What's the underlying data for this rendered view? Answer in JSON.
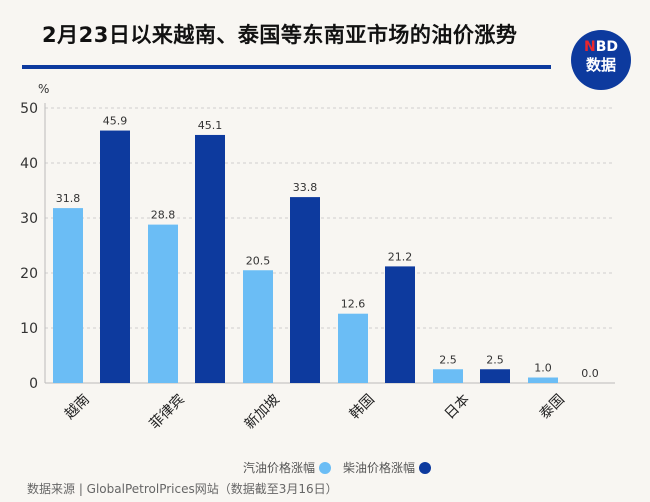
{
  "title": "2月23日以来越南、泰国等东南亚市场的油价涨势",
  "logo": {
    "brand": "NBD",
    "sub": "数据"
  },
  "source": "数据来源 | GlobalPetrolPrices网站（数据截至3月16日）",
  "colors": {
    "gasoline": "#6bbdf5",
    "diesel": "#0d3a9e",
    "accent": "#0d3a9e"
  },
  "chart_data": {
    "type": "bar",
    "title": "2月23日以来越南、泰国等东南亚市场的油价涨势",
    "ylabel": "%",
    "ylim": [
      0,
      50
    ],
    "yticks": [
      0,
      10,
      20,
      30,
      40,
      50
    ],
    "grid": true,
    "legend_placement": "bottom-center",
    "categories": [
      "越南",
      "菲律宾",
      "新加坡",
      "韩国",
      "日本",
      "泰国"
    ],
    "series": [
      {
        "name": "汽油价格涨幅",
        "color": "#6bbdf5",
        "values": [
          31.8,
          28.8,
          20.5,
          12.6,
          2.5,
          1.0
        ]
      },
      {
        "name": "柴油价格涨幅",
        "color": "#0d3a9e",
        "values": [
          45.9,
          45.1,
          33.8,
          21.2,
          2.5,
          0.0
        ]
      }
    ]
  }
}
